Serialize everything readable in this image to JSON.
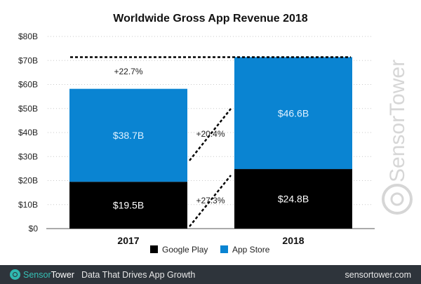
{
  "chart_data": {
    "type": "bar",
    "stacked": true,
    "title": "Worldwide Gross App Revenue 2018",
    "categories": [
      "2017",
      "2018"
    ],
    "series": [
      {
        "name": "Google Play",
        "values": [
          19.5,
          24.8
        ],
        "labels": [
          "$19.5B",
          "$24.8B"
        ],
        "color": "#000000"
      },
      {
        "name": "App Store",
        "values": [
          38.7,
          46.6
        ],
        "labels": [
          "$38.7B",
          "$46.6B"
        ],
        "color": "#0a84d2"
      }
    ],
    "ylim": [
      0,
      80
    ],
    "yticks": [
      0,
      10,
      20,
      30,
      40,
      50,
      60,
      70,
      80
    ],
    "ytick_labels": [
      "$0",
      "$10B",
      "$20B",
      "$30B",
      "$40B",
      "$50B",
      "$60B",
      "$70B",
      "$80B"
    ],
    "grid": "horizontal-dotted",
    "legend": "bottom-center",
    "annotations": {
      "total_growth": "+22.7%",
      "app_store_growth": "+20.4%",
      "google_play_growth": "+27.3%"
    }
  },
  "watermark": "SensorTower",
  "footer": {
    "brand_part1": "Sensor",
    "brand_part2": "Tower",
    "tagline": "Data That Drives App Growth",
    "website": "sensortower.com"
  }
}
